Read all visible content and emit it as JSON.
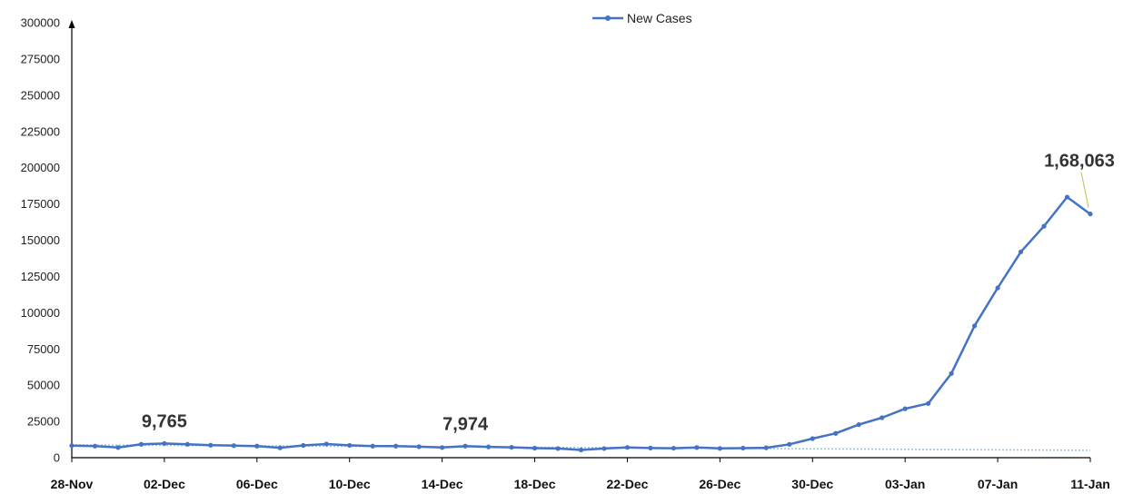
{
  "chart_data": {
    "type": "line",
    "series": [
      {
        "name": "New Cases",
        "color": "#4472c4",
        "values": [
          8318,
          8000,
          6990,
          9216,
          9765,
          9216,
          8603,
          8306,
          8000,
          6822,
          8439,
          9416,
          8503,
          7992,
          7974,
          7584,
          6984,
          7974,
          7447,
          7145,
          6563,
          6317,
          5326,
          6317,
          7081,
          6650,
          6531,
          6987,
          6358,
          6600,
          6800,
          9195,
          13154,
          16764,
          22775,
          27553,
          33750,
          37379,
          58097,
          90928,
          117100,
          141986,
          159632,
          179723,
          168063
        ]
      }
    ],
    "x_ticks": [
      "28-Nov",
      "02-Dec",
      "06-Dec",
      "10-Dec",
      "14-Dec",
      "18-Dec",
      "22-Dec",
      "26-Dec",
      "30-Dec",
      "03-Jan",
      "07-Jan",
      "11-Jan"
    ],
    "y_ticks": [
      "0",
      "25000",
      "50000",
      "75000",
      "100000",
      "125000",
      "150000",
      "175000",
      "200000",
      "225000",
      "250000",
      "275000",
      "300000"
    ],
    "ylim": [
      0,
      300000
    ],
    "annotations": [
      {
        "text": "9,765",
        "index": 4
      },
      {
        "text": "7,974",
        "index": 17
      },
      {
        "text": "1,68,063",
        "index": 44
      }
    ],
    "legend_position": "top-center",
    "grid": false,
    "trendline_color": "#9dc3e6"
  }
}
